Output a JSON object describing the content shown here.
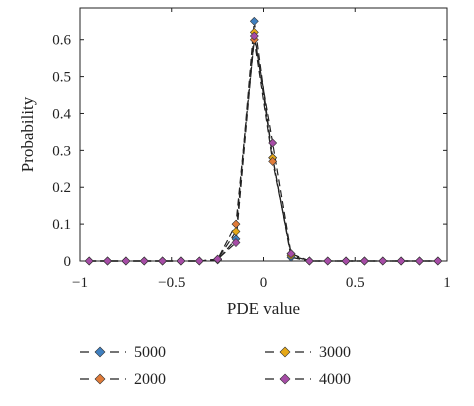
{
  "chart_data": {
    "type": "line",
    "xlabel": "PDE value",
    "ylabel": "Probability",
    "xlim": [
      -1,
      1
    ],
    "ylim": [
      0,
      0.7
    ],
    "xticks": [
      -1,
      -0.5,
      0,
      0.5,
      1
    ],
    "yticks": [
      0,
      0.1,
      0.2,
      0.3,
      0.4,
      0.5,
      0.6
    ],
    "xtick_labels": [
      "−1",
      "−0.5",
      "0",
      "0.5",
      "1"
    ],
    "ytick_labels": [
      "0",
      "0.1",
      "0.2",
      "0.3",
      "0.4",
      "0.5",
      "0.6"
    ],
    "grid": false,
    "legend_position": "bottom",
    "x": [
      -0.95,
      -0.85,
      -0.75,
      -0.65,
      -0.55,
      -0.45,
      -0.35,
      -0.25,
      -0.15,
      -0.05,
      0.05,
      0.15,
      0.25,
      0.35,
      0.45,
      0.55,
      0.65,
      0.75,
      0.85,
      0.95
    ],
    "series": [
      {
        "name": "5000",
        "color": "#3f7fbf",
        "values": [
          0,
          0,
          0,
          0,
          0,
          0,
          0,
          0.003,
          0.06,
          0.65,
          0.28,
          0.01,
          0,
          0,
          0,
          0,
          0,
          0,
          0,
          0
        ]
      },
      {
        "name": "3000",
        "color": "#e6a817",
        "values": [
          0,
          0,
          0,
          0,
          0,
          0,
          0,
          0.005,
          0.08,
          0.62,
          0.28,
          0.015,
          0,
          0,
          0,
          0,
          0,
          0,
          0,
          0
        ]
      },
      {
        "name": "2000",
        "color": "#e07b39",
        "values": [
          0,
          0,
          0,
          0,
          0,
          0,
          0,
          0.005,
          0.1,
          0.6,
          0.27,
          0.02,
          0,
          0,
          0,
          0,
          0,
          0,
          0,
          0
        ]
      },
      {
        "name": "4000",
        "color": "#a64ca6",
        "values": [
          0,
          0,
          0,
          0,
          0,
          0,
          0,
          0.005,
          0.05,
          0.61,
          0.32,
          0.02,
          0,
          0,
          0,
          0,
          0,
          0,
          0,
          0
        ]
      }
    ]
  }
}
